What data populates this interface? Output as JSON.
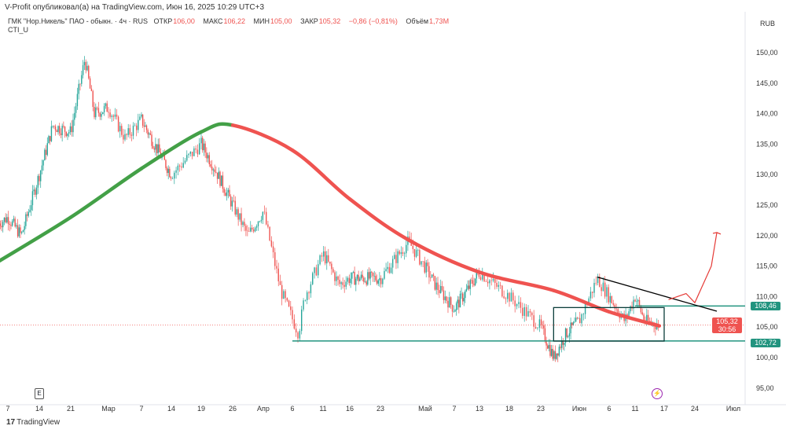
{
  "publisher": "V-Profit опубликовал(а) на TradingView.com, Июн 16, 2025 10:29 UTC+3",
  "legend": {
    "symbol": "ГМК \"Нор.Никель\" ПАО - обыкн. · 4ч · RUS",
    "open_label": "ОТКР",
    "open": "106,00",
    "high_label": "МАКС",
    "high": "106,22",
    "low_label": "МИН",
    "low": "105,00",
    "close_label": "ЗАКР",
    "close": "105,32",
    "change": "−0,86 (−0,81%)",
    "volume_label": "Объём",
    "volume": "1,73M"
  },
  "indicator": "CTI_U",
  "currency": "RUB",
  "tags": {
    "level_high": "108,46",
    "price": "105,32",
    "countdown": "30:56",
    "level_low": "102,72"
  },
  "branding": "TradingView",
  "earnings_icon": "E",
  "colors": {
    "up": "#26a69a",
    "down": "#ef5350",
    "cti_up": "#43a047",
    "cti_down": "#ef5350",
    "level": "#22947f",
    "drawing": "#e53935"
  },
  "chart_data": {
    "type": "candlestick",
    "title": "ГМК \"Нор.Никель\" ПАО - обыкн. 4ч",
    "ylim": [
      93,
      153
    ],
    "y_ticks": [
      "95,00",
      "100,00",
      "105,00",
      "110,00",
      "115,00",
      "120,00",
      "125,00",
      "130,00",
      "135,00",
      "140,00",
      "145,00",
      "150,00"
    ],
    "x_ticks": [
      [
        "7",
        "02-07"
      ],
      [
        "14",
        "02-14"
      ],
      [
        "21",
        "02-21"
      ],
      [
        "Мар",
        "03-01"
      ],
      [
        "7",
        "03-07"
      ],
      [
        "14",
        "03-14"
      ],
      [
        "19",
        "03-19"
      ],
      [
        "26",
        "03-26"
      ],
      [
        "Апр",
        "04-01"
      ],
      [
        "6",
        "04-06"
      ],
      [
        "11",
        "04-11"
      ],
      [
        "16",
        "04-16"
      ],
      [
        "23",
        "04-23"
      ],
      [
        "Май",
        "05-01"
      ],
      [
        "7",
        "05-07"
      ],
      [
        "13",
        "05-13"
      ],
      [
        "18",
        "05-18"
      ],
      [
        "23",
        "05-23"
      ],
      [
        "Июн",
        "06-01"
      ],
      [
        "6",
        "06-06"
      ],
      [
        "11",
        "06-11"
      ],
      [
        "17",
        "06-17"
      ],
      [
        "24",
        "06-24"
      ],
      [
        "Июл",
        "07-01"
      ]
    ],
    "price_path": [
      [
        "02-05",
        122
      ],
      [
        "02-07",
        123
      ],
      [
        "02-10",
        120
      ],
      [
        "02-14",
        130
      ],
      [
        "02-17",
        138
      ],
      [
        "02-21",
        137
      ],
      [
        "02-24",
        149
      ],
      [
        "02-26",
        140
      ],
      [
        "03-01",
        141
      ],
      [
        "03-04",
        136
      ],
      [
        "03-07",
        139
      ],
      [
        "03-10",
        135
      ],
      [
        "03-14",
        130
      ],
      [
        "03-19",
        135
      ],
      [
        "03-22",
        131
      ],
      [
        "03-26",
        125
      ],
      [
        "03-29",
        120
      ],
      [
        "04-01",
        124
      ],
      [
        "04-04",
        111
      ],
      [
        "04-07",
        104
      ],
      [
        "04-08",
        110
      ],
      [
        "04-11",
        117
      ],
      [
        "04-14",
        112
      ],
      [
        "04-16",
        113
      ],
      [
        "04-23",
        113
      ],
      [
        "04-28",
        119
      ],
      [
        "05-03",
        112
      ],
      [
        "05-07",
        108
      ],
      [
        "05-13",
        114
      ],
      [
        "05-18",
        110
      ],
      [
        "05-23",
        105
      ],
      [
        "05-26",
        100
      ],
      [
        "05-29",
        104
      ],
      [
        "06-01",
        106
      ],
      [
        "06-04",
        113
      ],
      [
        "06-06",
        110
      ],
      [
        "06-09",
        106
      ],
      [
        "06-11",
        110
      ],
      [
        "06-13",
        106
      ],
      [
        "06-16",
        105.32
      ]
    ],
    "cti_curve": [
      [
        "02-05",
        115.8,
        "up"
      ],
      [
        "02-21",
        123,
        "up"
      ],
      [
        "03-07",
        131,
        "up"
      ],
      [
        "03-19",
        137,
        "up"
      ],
      [
        "03-26",
        138.1,
        "down"
      ],
      [
        "04-06",
        134,
        "down"
      ],
      [
        "04-16",
        126,
        "down"
      ],
      [
        "04-28",
        119.3,
        "down"
      ],
      [
        "05-13",
        114,
        "down"
      ],
      [
        "05-26",
        111,
        "down"
      ],
      [
        "06-06",
        107.5,
        "down"
      ],
      [
        "06-16",
        105.2,
        "down"
      ]
    ],
    "levels": [
      {
        "price": 102.72,
        "from": "04-06"
      },
      {
        "price": 108.46,
        "from": "06-11"
      }
    ],
    "trendline": [
      [
        "06-04",
        113.2
      ],
      [
        "06-28",
        107.6
      ]
    ],
    "range_box": {
      "from": "05-26",
      "to": "06-17",
      "top": 108.2,
      "bottom": 102.7
    },
    "projection_arrow": [
      [
        "06-18",
        109.5
      ],
      [
        "06-22",
        110.5
      ],
      [
        "06-24",
        109
      ],
      [
        "06-27",
        115
      ],
      [
        "06-28",
        120.5
      ]
    ],
    "last_price": 105.32
  }
}
